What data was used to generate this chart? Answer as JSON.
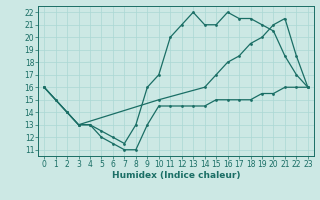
{
  "xlabel": "Humidex (Indice chaleur)",
  "bg_color": "#cce8e4",
  "grid_color": "#aad8d4",
  "line_color": "#1a6e65",
  "xlim": [
    -0.5,
    23.5
  ],
  "ylim": [
    10.5,
    22.5
  ],
  "xticks": [
    0,
    1,
    2,
    3,
    4,
    5,
    6,
    7,
    8,
    9,
    10,
    11,
    12,
    13,
    14,
    15,
    16,
    17,
    18,
    19,
    20,
    21,
    22,
    23
  ],
  "yticks": [
    11,
    12,
    13,
    14,
    15,
    16,
    17,
    18,
    19,
    20,
    21,
    22
  ],
  "line1_x": [
    0,
    1,
    2,
    3,
    4,
    5,
    6,
    7,
    8,
    9,
    10,
    11,
    12,
    13,
    14,
    15,
    16,
    17,
    18,
    19,
    20,
    21,
    22,
    23
  ],
  "line1_y": [
    16,
    15,
    14,
    13,
    13,
    12,
    11.5,
    11,
    11,
    13,
    14.5,
    14.5,
    14.5,
    14.5,
    14.5,
    15,
    15,
    15,
    15,
    15.5,
    15.5,
    16,
    16,
    16
  ],
  "line2_x": [
    0,
    1,
    2,
    3,
    4,
    5,
    6,
    7,
    8,
    9,
    10,
    11,
    12,
    13,
    14,
    15,
    16,
    17,
    18,
    19,
    20,
    21,
    22,
    23
  ],
  "line2_y": [
    16,
    15,
    14,
    13,
    13,
    12.5,
    12,
    11.5,
    13,
    16,
    17,
    20,
    21,
    22,
    21,
    21,
    22,
    21.5,
    21.5,
    21,
    20.5,
    18.5,
    17,
    16
  ],
  "line3_x": [
    0,
    2,
    3,
    10,
    14,
    15,
    16,
    17,
    18,
    19,
    20,
    21,
    22,
    23
  ],
  "line3_y": [
    16,
    14,
    13,
    15,
    16,
    17,
    18,
    18.5,
    19.5,
    20,
    21,
    21.5,
    18.5,
    16
  ],
  "tick_fontsize": 5.5,
  "xlabel_fontsize": 6.5
}
